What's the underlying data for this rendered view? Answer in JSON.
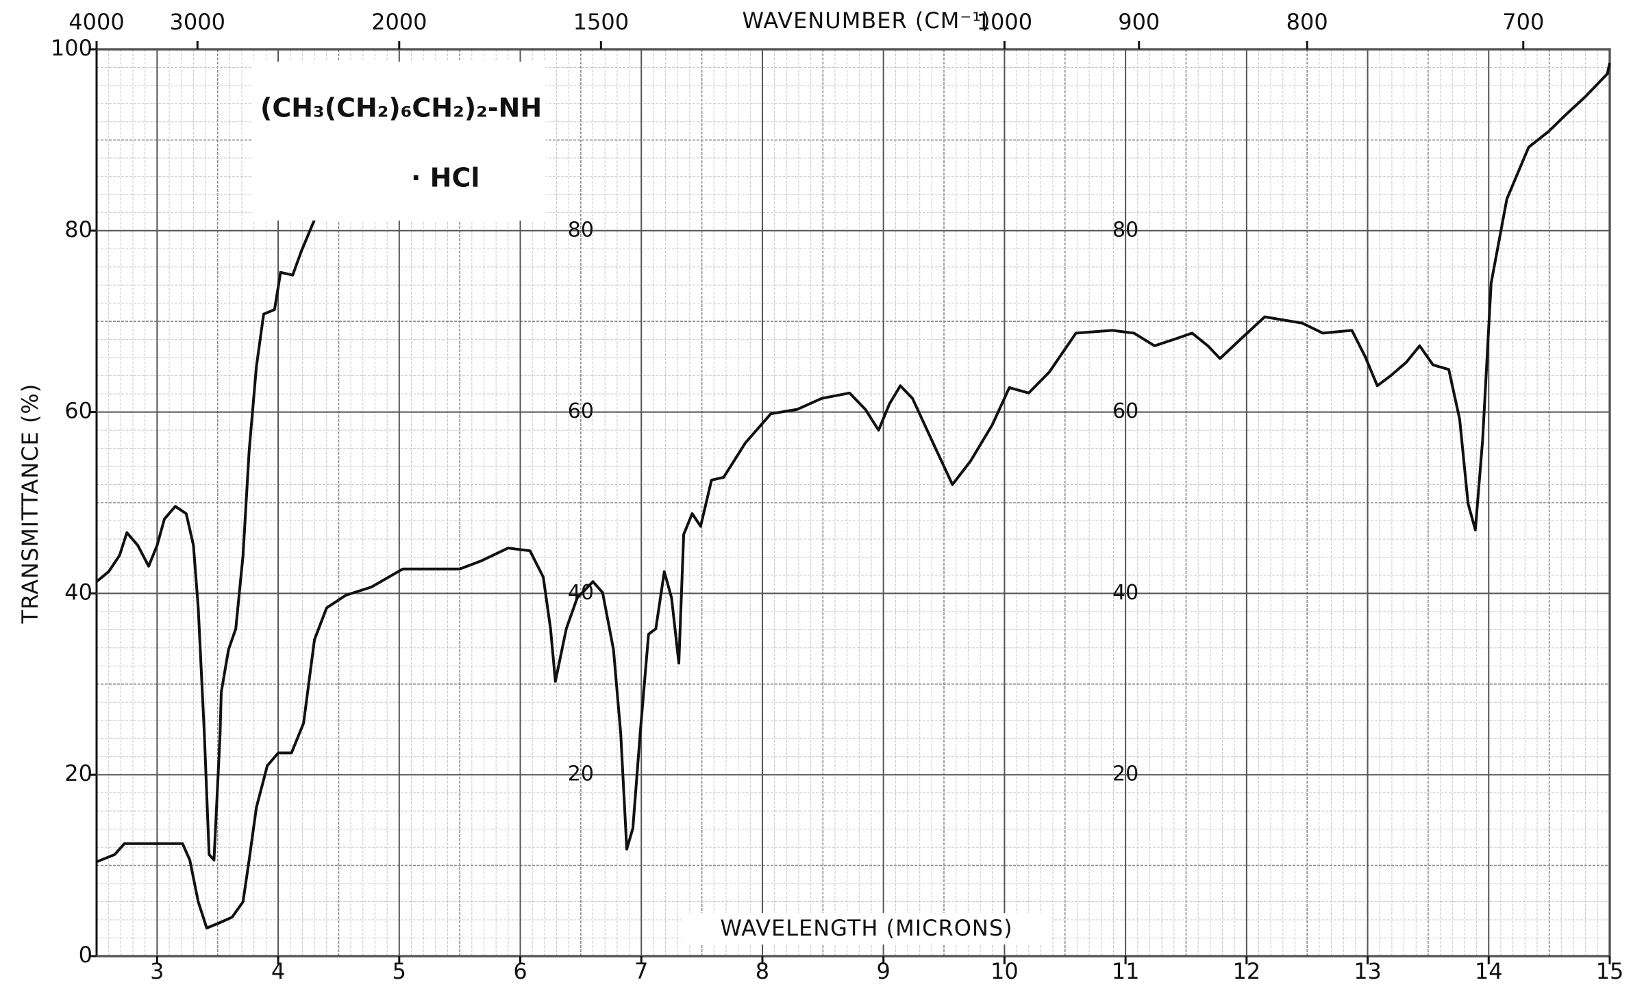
{
  "chart_data": {
    "type": "line",
    "x_label": "WAVELENGTH (MICRONS)",
    "x2_label": "WAVENUMBER (CM⁻¹)",
    "y_label": "TRANSMITTANCE (%)",
    "annotations": [
      "(CH₃(CH₂)₆CH₂)₂-NH",
      "· HCl"
    ],
    "xlim": [
      2.5,
      15
    ],
    "xticks": [
      3,
      4,
      5,
      6,
      7,
      8,
      9,
      10,
      11,
      12,
      13,
      14,
      15
    ],
    "x2ticks": [
      4000,
      3000,
      2000,
      1500,
      1000,
      900,
      800,
      700
    ],
    "ylim": [
      0,
      100
    ],
    "yticks": [
      0,
      20,
      40,
      60,
      80,
      100
    ],
    "inner_tick_x": [
      6.5,
      11.0
    ],
    "inner_yticks": [
      20,
      40,
      60,
      80
    ],
    "grid": true,
    "series": [
      {
        "color": "#111111",
        "x": [
          2.5,
          2.6,
          2.69,
          2.75,
          2.84,
          2.93,
          3.0,
          3.06,
          3.15,
          3.24,
          3.3,
          3.34,
          3.39,
          3.43,
          3.47,
          3.52,
          3.53,
          3.59,
          3.65,
          3.71,
          3.76,
          3.82,
          3.88,
          3.97,
          4.02,
          4.12,
          4.19,
          4.3
        ],
        "values": [
          41.3,
          42.4,
          44.2,
          46.7,
          45.3,
          43,
          45.3,
          48.2,
          49.6,
          48.8,
          45.3,
          38.4,
          24.5,
          11.2,
          10.6,
          24.5,
          29.1,
          33.8,
          36.1,
          44.2,
          55.7,
          65,
          70.8,
          71.3,
          75.4,
          75.1,
          77.7,
          81.2
        ]
      },
      {
        "color": "#111111",
        "x": [
          2.5,
          2.65,
          2.73,
          3.21,
          3.27,
          3.34,
          3.41,
          3.52,
          3.62,
          3.71,
          3.76,
          3.82,
          3.91,
          4.0,
          4.11,
          4.21,
          4.3,
          4.4,
          4.56,
          4.77,
          5.03,
          5.5,
          5.68,
          5.9,
          6.08,
          6.19,
          6.25,
          6.29,
          6.38,
          6.47,
          6.6,
          6.68,
          6.77,
          6.83,
          6.88,
          6.93,
          6.99,
          7.06,
          7.12,
          7.19,
          7.25,
          7.31,
          7.35,
          7.42,
          7.49,
          7.58,
          7.68,
          7.86,
          8.07,
          8.29,
          8.49,
          8.72,
          8.85,
          8.96,
          9.05,
          9.14,
          9.24,
          9.42,
          9.57,
          9.72,
          9.9,
          10.04,
          10.2,
          10.37,
          10.59,
          10.89,
          11.07,
          11.24,
          11.42,
          11.55,
          11.68,
          11.78,
          11.94,
          12.15,
          12.46,
          12.63,
          12.87,
          12.98,
          13.08,
          13.19,
          13.32,
          13.43,
          13.54,
          13.67,
          13.76,
          13.83,
          13.89,
          13.95,
          14.02,
          14.15,
          14.33,
          14.5,
          14.63,
          14.8,
          14.98,
          15
        ],
        "values": [
          10.4,
          11.2,
          12.4,
          12.4,
          10.6,
          6,
          3.1,
          3.7,
          4.3,
          6,
          10.6,
          16.4,
          21,
          22.4,
          22.4,
          25.7,
          34.9,
          38.4,
          39.8,
          40.7,
          42.7,
          42.7,
          43.6,
          45,
          44.7,
          41.8,
          36.1,
          30.3,
          36.1,
          39.5,
          41.3,
          40.1,
          33.8,
          24.5,
          11.8,
          14.1,
          24.5,
          35.5,
          36.1,
          42.4,
          39.5,
          32.3,
          46.5,
          48.8,
          47.4,
          52.5,
          52.8,
          56.6,
          59.8,
          60.3,
          61.5,
          62.1,
          60.3,
          58,
          60.9,
          62.9,
          61.5,
          56.3,
          52,
          54.6,
          58.6,
          62.7,
          62.1,
          64.4,
          68.7,
          69,
          68.7,
          67.3,
          68.1,
          68.7,
          67.3,
          65.9,
          67.9,
          70.5,
          69.8,
          68.7,
          69,
          66.1,
          62.9,
          64,
          65.5,
          67.3,
          65.2,
          64.7,
          59.2,
          49.9,
          47,
          56.9,
          74.2,
          83.5,
          89.2,
          91,
          92.7,
          94.8,
          97.3,
          98.5
        ]
      }
    ]
  }
}
